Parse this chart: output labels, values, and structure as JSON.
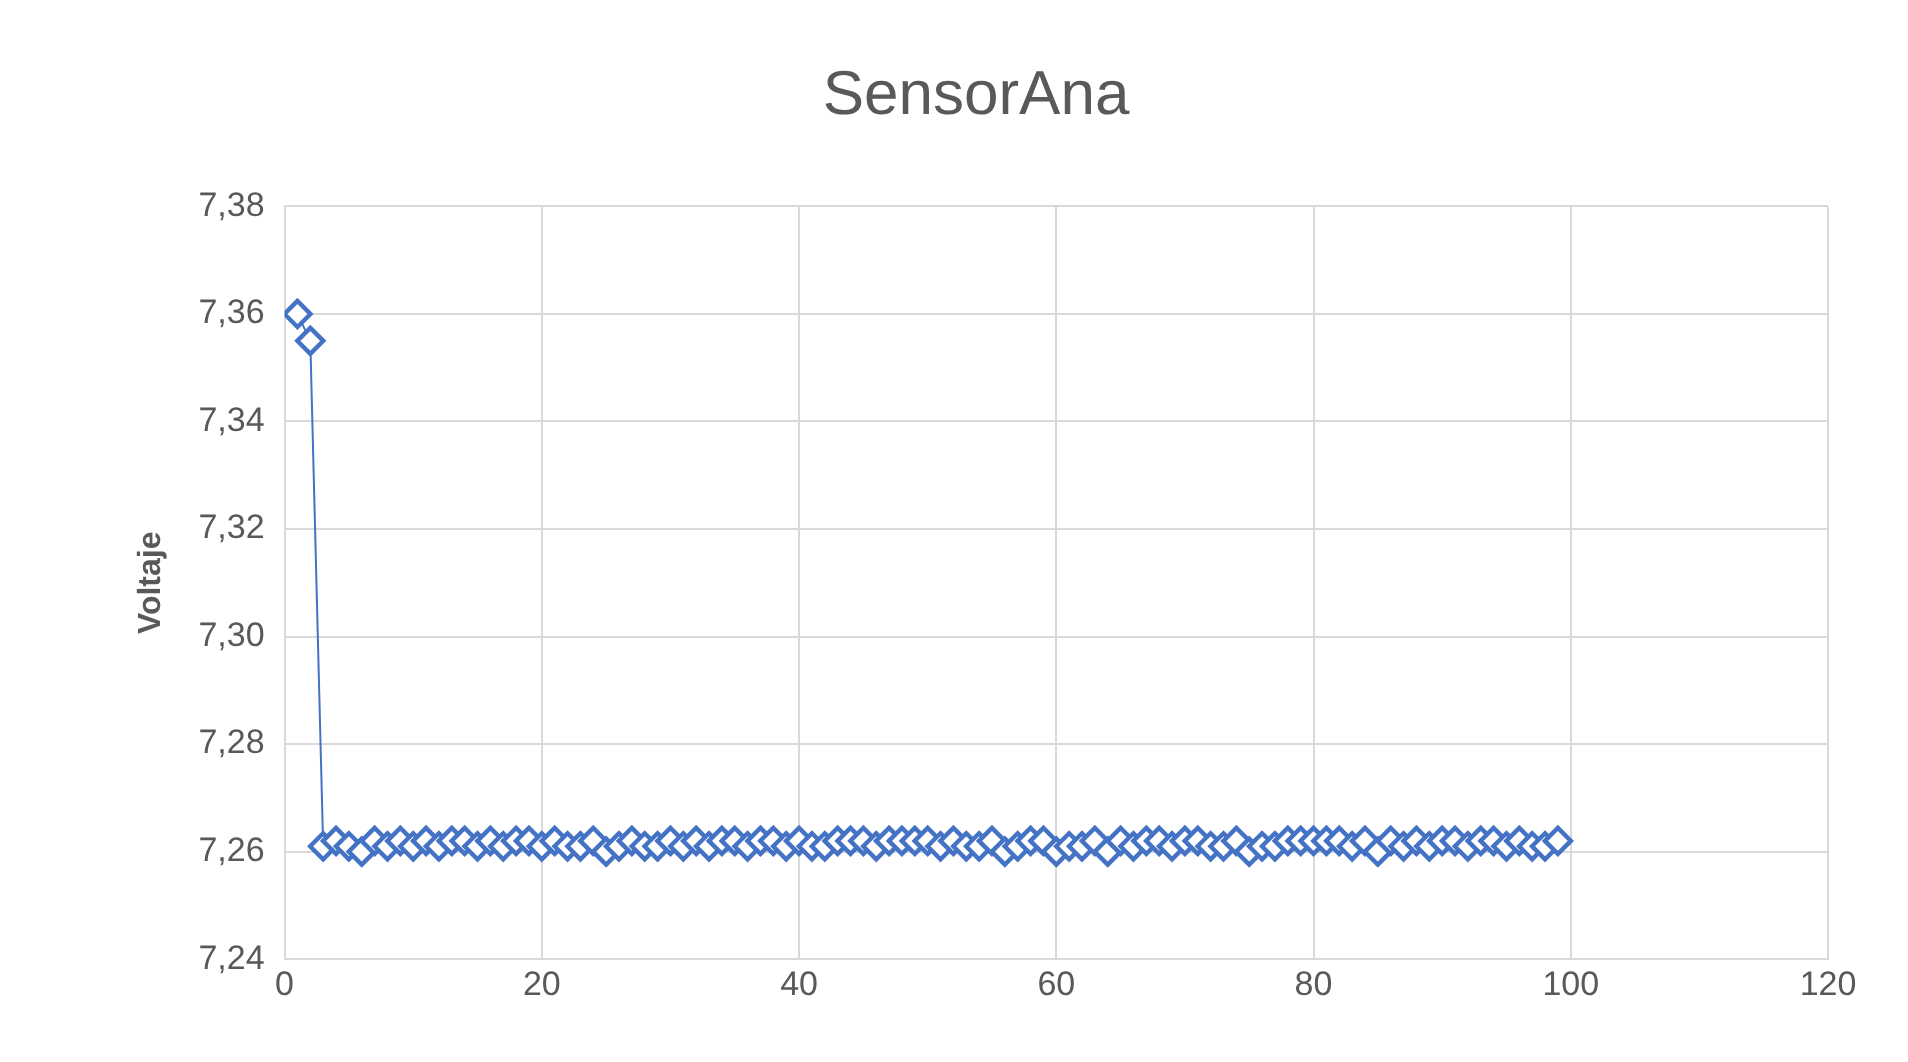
{
  "chart_data": {
    "type": "line",
    "title": "SensorAna",
    "ylabel": "Voltaje",
    "x": [
      1,
      2,
      3,
      4,
      5,
      6,
      7,
      8,
      9,
      10,
      11,
      12,
      13,
      14,
      15,
      16,
      17,
      18,
      19,
      20,
      21,
      22,
      23,
      24,
      25,
      26,
      27,
      28,
      29,
      30,
      31,
      32,
      33,
      34,
      35,
      36,
      37,
      38,
      39,
      40,
      41,
      42,
      43,
      44,
      45,
      46,
      47,
      48,
      49,
      50,
      51,
      52,
      53,
      54,
      55,
      56,
      57,
      58,
      59,
      60,
      61,
      62,
      63,
      64,
      65,
      66,
      67,
      68,
      69,
      70,
      71,
      72,
      73,
      74,
      75,
      76,
      77,
      78,
      79,
      80,
      81,
      82,
      83,
      84,
      85,
      86,
      87,
      88,
      89,
      90,
      91,
      92,
      93,
      94,
      95,
      96,
      97,
      98,
      99
    ],
    "series": [
      {
        "color": "#4472c4",
        "values": [
          7.36,
          7.355,
          7.261,
          7.262,
          7.261,
          7.26,
          7.262,
          7.261,
          7.262,
          7.261,
          7.262,
          7.261,
          7.262,
          7.262,
          7.261,
          7.262,
          7.261,
          7.262,
          7.262,
          7.261,
          7.262,
          7.261,
          7.261,
          7.262,
          7.26,
          7.261,
          7.262,
          7.261,
          7.261,
          7.262,
          7.261,
          7.262,
          7.261,
          7.262,
          7.262,
          7.261,
          7.262,
          7.262,
          7.261,
          7.262,
          7.261,
          7.261,
          7.262,
          7.262,
          7.262,
          7.261,
          7.262,
          7.262,
          7.262,
          7.262,
          7.261,
          7.262,
          7.261,
          7.261,
          7.262,
          7.26,
          7.261,
          7.262,
          7.262,
          7.26,
          7.261,
          7.261,
          7.262,
          7.26,
          7.262,
          7.261,
          7.262,
          7.262,
          7.261,
          7.262,
          7.262,
          7.261,
          7.261,
          7.262,
          7.26,
          7.261,
          7.261,
          7.262,
          7.262,
          7.262,
          7.262,
          7.262,
          7.261,
          7.262,
          7.26,
          7.262,
          7.261,
          7.262,
          7.261,
          7.262,
          7.262,
          7.261,
          7.262,
          7.262,
          7.261,
          7.262,
          7.261,
          7.261,
          7.262
        ]
      }
    ],
    "xlim": [
      0,
      120
    ],
    "xticks": [
      0,
      20,
      40,
      60,
      80,
      100,
      120
    ],
    "ylim": [
      7.24,
      7.38
    ],
    "yticks": [
      {
        "value": 7.24,
        "label": "7,24"
      },
      {
        "value": 7.26,
        "label": "7,26"
      },
      {
        "value": 7.28,
        "label": "7,28"
      },
      {
        "value": 7.3,
        "label": "7,30"
      },
      {
        "value": 7.32,
        "label": "7,32"
      },
      {
        "value": 7.34,
        "label": "7,34"
      },
      {
        "value": 7.36,
        "label": "7,36"
      },
      {
        "value": 7.38,
        "label": "7,38"
      }
    ],
    "grid": true,
    "legend": false,
    "marker": "diamond",
    "line_style": "solid"
  }
}
